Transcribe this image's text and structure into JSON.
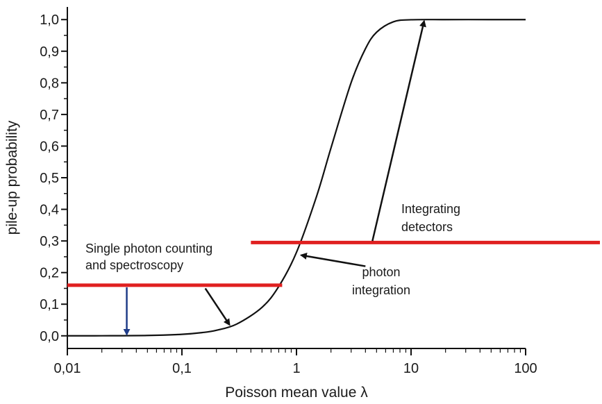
{
  "chart_data": {
    "type": "line",
    "title": "",
    "xlabel": "Poisson mean value λ",
    "ylabel": "pile-up probability",
    "xscale": "log",
    "xlim": [
      0.01,
      100
    ],
    "ylim": [
      -0.04,
      1.04
    ],
    "x_ticks": [
      0.01,
      0.1,
      1,
      10,
      100
    ],
    "x_tick_labels": [
      "0,01",
      "0,1",
      "1",
      "10",
      "100"
    ],
    "y_ticks": [
      0.0,
      0.1,
      0.2,
      0.3,
      0.4,
      0.5,
      0.6,
      0.7,
      0.8,
      0.9,
      1.0
    ],
    "y_tick_labels": [
      "0,0",
      "0,1",
      "0,2",
      "0,3",
      "0,4",
      "0,5",
      "0,6",
      "0,7",
      "0,8",
      "0,9",
      "1,0"
    ],
    "grid": false,
    "series": [
      {
        "color": "#111111",
        "x": [
          0.01,
          0.02,
          0.05,
          0.1,
          0.15,
          0.2,
          0.3,
          0.5,
          0.7,
          1,
          1.5,
          2,
          3,
          4,
          5,
          7,
          10,
          20,
          50,
          100
        ],
        "y": [
          0.0,
          0.0002,
          0.0012,
          0.0047,
          0.0102,
          0.0175,
          0.037,
          0.09,
          0.156,
          0.264,
          0.442,
          0.594,
          0.801,
          0.908,
          0.96,
          0.993,
          0.9995,
          1.0,
          1.0,
          1.0
        ]
      }
    ],
    "reference_lines": [
      {
        "y": 0.16,
        "x_from": 0.01,
        "x_to": 0.75,
        "color": "#e02020"
      },
      {
        "y": 0.295,
        "x_from": 0.4,
        "x_to": 500,
        "color": "#e02020"
      }
    ],
    "down_arrow": {
      "x": 0.033,
      "y_from": 0.16,
      "y_to": 0.0,
      "color": "#1f3c88"
    },
    "annotations": [
      {
        "lines": [
          "Single photon counting",
          "and spectroscopy"
        ]
      },
      {
        "lines": [
          "Integrating",
          "detectors"
        ]
      },
      {
        "lines": [
          "photon",
          "integration"
        ]
      }
    ],
    "arrows": [
      {
        "x_from": 0.16,
        "y_from": 0.15,
        "x_to": 0.26,
        "y_to": 0.035
      },
      {
        "x_from": 4.0,
        "y_from": 0.22,
        "x_to": 1.1,
        "y_to": 0.255
      },
      {
        "x_from": 4.6,
        "y_from": 0.3,
        "x_to": 13.0,
        "y_to": 0.995
      }
    ]
  }
}
